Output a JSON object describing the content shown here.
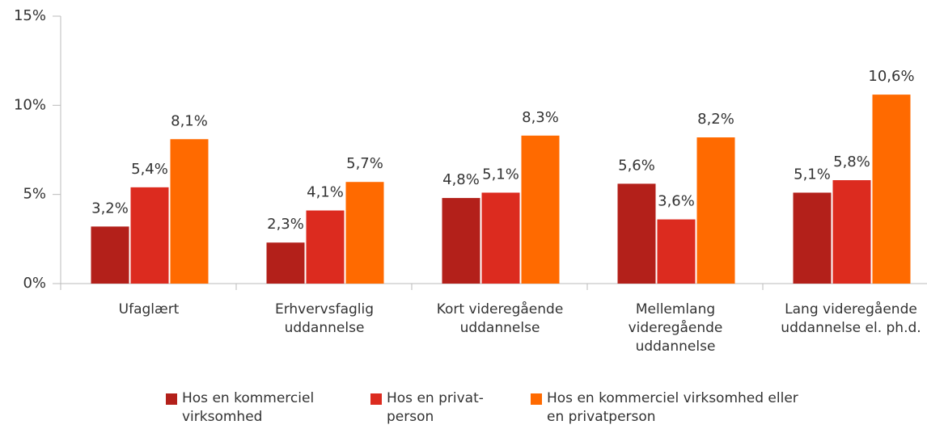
{
  "chart_data": {
    "type": "bar",
    "categories": [
      "Ufaglært",
      "Erhvervsfaglig uddannelse",
      "Kort videregående uddannelse",
      "Mellemlang videregående uddannelse",
      "Lang videregående uddannelse el. ph.d."
    ],
    "series": [
      {
        "name": "Hos en kommerciel virksomhed",
        "color": "#b3201a",
        "values": [
          3.2,
          2.3,
          4.8,
          5.6,
          5.1
        ],
        "value_labels": [
          "3,2%",
          "2,3%",
          "4,8%",
          "5,6%",
          "5,1%"
        ]
      },
      {
        "name": "Hos en privat-person",
        "color": "#dc2b1f",
        "values": [
          5.4,
          4.1,
          5.1,
          3.6,
          5.8
        ],
        "value_labels": [
          "5,4%",
          "4,1%",
          "5,1%",
          "3,6%",
          "5,8%"
        ]
      },
      {
        "name": "Hos en kommerciel virksomhed eller en privatperson",
        "color": "#ff6a00",
        "values": [
          8.1,
          5.7,
          8.3,
          8.2,
          10.6
        ],
        "value_labels": [
          "8,1%",
          "5,7%",
          "8,3%",
          "8,2%",
          "10,6%"
        ]
      }
    ],
    "ylim": [
      0,
      15
    ],
    "yticks": [
      {
        "value": 0,
        "label": "0%"
      },
      {
        "value": 5,
        "label": "5%"
      },
      {
        "value": 10,
        "label": "10%"
      },
      {
        "value": 15,
        "label": "15%"
      }
    ],
    "legend": "bottom"
  }
}
